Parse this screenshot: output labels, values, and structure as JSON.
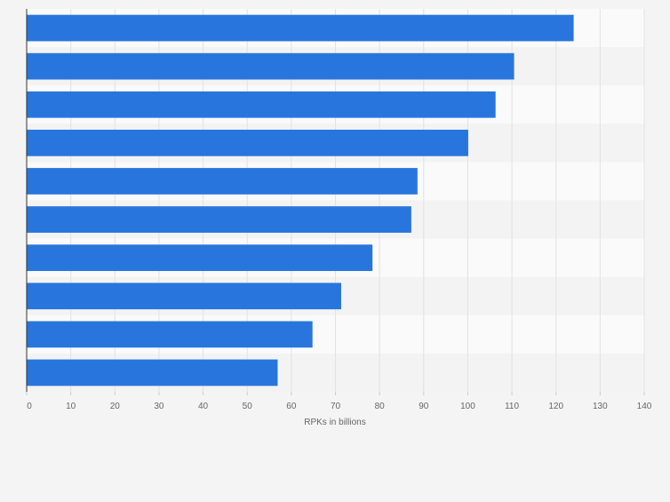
{
  "colors": {
    "page_background": "#f4f4f4",
    "plot_band_light": "#fafafa",
    "plot_band_dark": "#f3f3f3",
    "bar": "#2876dd",
    "gridline": "#e2e2e2",
    "axis_line": "#333333"
  },
  "chart_data": {
    "type": "bar",
    "orientation": "horizontal",
    "title": "",
    "xlabel": "RPKs in billions",
    "ylabel": "",
    "categories": [
      "",
      "",
      "",
      "",
      "",
      "",
      "",
      "",
      "",
      ""
    ],
    "values": [
      124,
      110.5,
      106.3,
      100.1,
      88.6,
      87.2,
      78.4,
      71.3,
      64.8,
      56.9
    ],
    "xlim": [
      0,
      140
    ],
    "xticks": [
      0,
      10,
      20,
      30,
      40,
      50,
      60,
      70,
      80,
      90,
      100,
      110,
      120,
      130,
      140
    ],
    "xtick_labels": [
      "0",
      "10",
      "20",
      "30",
      "40",
      "50",
      "60",
      "70",
      "80",
      "90",
      "100",
      "110",
      "120",
      "130",
      "140"
    ],
    "grid": true,
    "legend": "none"
  }
}
